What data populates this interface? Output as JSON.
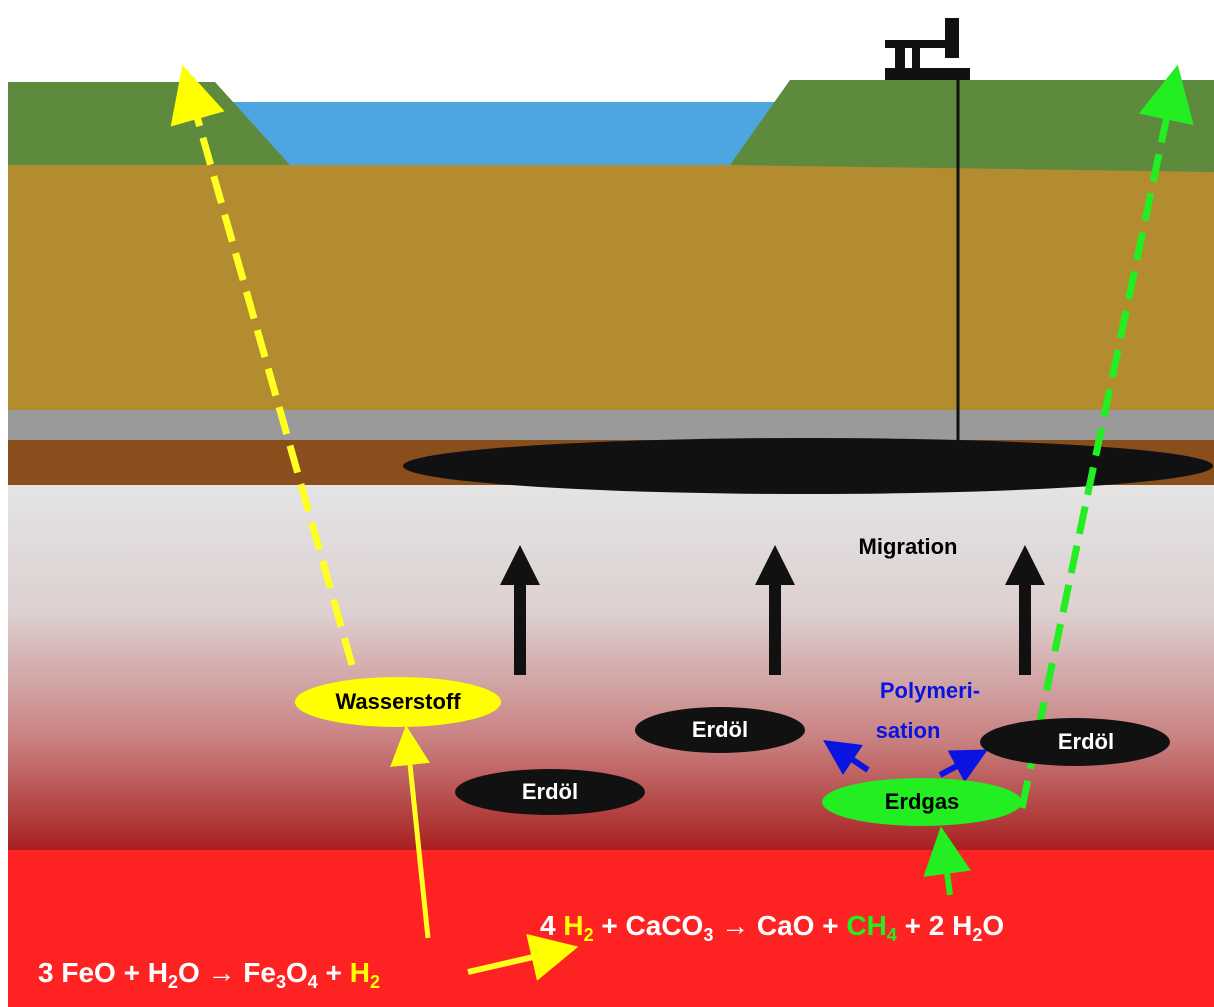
{
  "labels": {
    "migration": "Migration",
    "hydrogen": "Wasserstoff",
    "oil": [
      "Erdöl",
      "Erdöl",
      "Erdöl"
    ],
    "gas": "Erdgas",
    "polymerisation": [
      "Polymeri-",
      "sation"
    ]
  },
  "equations": [
    [
      "3 FeO + H",
      "2",
      "O → Fe",
      "3",
      "O",
      "4",
      " + ",
      "H",
      "2"
    ],
    [
      "4 ",
      "H",
      "2",
      " + CaCO",
      "3",
      " → CaO + ",
      "CH",
      "4",
      " + 2 H",
      "2",
      "O"
    ]
  ]
}
